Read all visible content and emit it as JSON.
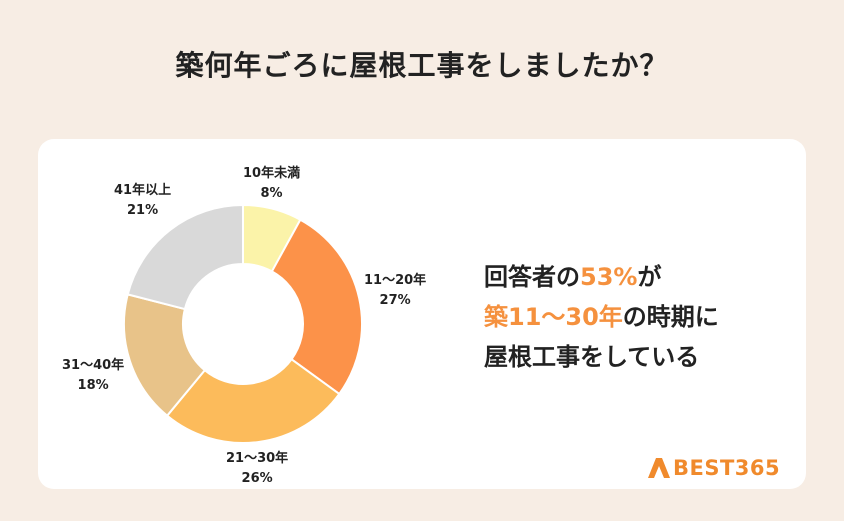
{
  "title": "築何年ごろに屋根工事をしましたか？",
  "chart_data": {
    "type": "pie",
    "style": "donut",
    "title": "",
    "slices": [
      {
        "label": "10年未満",
        "value": 8,
        "value_label": "8%",
        "color": "#fbf3a9"
      },
      {
        "label": "11〜20年",
        "value": 27,
        "value_label": "27%",
        "color": "#fc9249"
      },
      {
        "label": "21〜30年",
        "value": 26,
        "value_label": "26%",
        "color": "#fcbb5b"
      },
      {
        "label": "31〜40年",
        "value": 18,
        "value_label": "18%",
        "color": "#e8c389"
      },
      {
        "label": "41年以上",
        "value": 21,
        "value_label": "21%",
        "color": "#d9d9d9"
      }
    ]
  },
  "summary": {
    "line1_a": "回答者の",
    "line1_b": "53%",
    "line1_c": "が",
    "line2_a": "築11〜30年",
    "line2_b": "の時期に",
    "line3": "屋根工事をしている"
  },
  "logo": {
    "text": "BEST365",
    "color": "#f08a2c"
  }
}
